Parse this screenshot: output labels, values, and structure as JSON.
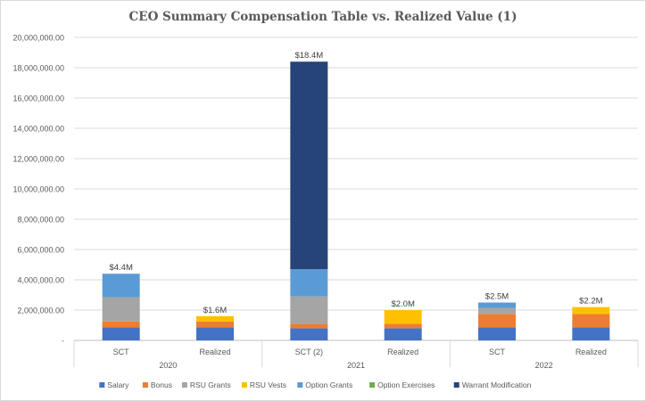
{
  "chart_data": {
    "type": "stacked-bar",
    "title": "CEO Summary Compensation Table vs. Realized Value (1)",
    "ylim": [
      0,
      20000000
    ],
    "yticks": [
      {
        "value": 0,
        "label": "-"
      },
      {
        "value": 2000000,
        "label": "2,000,000.00"
      },
      {
        "value": 4000000,
        "label": "4,000,000.00"
      },
      {
        "value": 6000000,
        "label": "6,000,000.00"
      },
      {
        "value": 8000000,
        "label": "8,000,000.00"
      },
      {
        "value": 10000000,
        "label": "10,000,000.00"
      },
      {
        "value": 12000000,
        "label": "12,000,000.00"
      },
      {
        "value": 14000000,
        "label": "14,000,000.00"
      },
      {
        "value": 16000000,
        "label": "16,000,000.00"
      },
      {
        "value": 18000000,
        "label": "18,000,000.00"
      },
      {
        "value": 20000000,
        "label": "20,000,000.00"
      }
    ],
    "groups": [
      {
        "year": "2020",
        "categories": [
          "SCT",
          "Realized"
        ]
      },
      {
        "year": "2021",
        "categories": [
          "SCT (2)",
          "Realized"
        ]
      },
      {
        "year": "2022",
        "categories": [
          "SCT",
          "Realized"
        ]
      }
    ],
    "series": [
      {
        "name": "Salary",
        "color": "#4472c4",
        "values": [
          850000,
          850000,
          800000,
          800000,
          850000,
          850000
        ]
      },
      {
        "name": "Bonus",
        "color": "#ed7d31",
        "values": [
          400000,
          400000,
          300000,
          300000,
          900000,
          900000
        ]
      },
      {
        "name": "RSU Grants",
        "color": "#a5a5a5",
        "values": [
          1600000,
          0,
          1800000,
          0,
          400000,
          0
        ]
      },
      {
        "name": "RSU Vests",
        "color": "#ffc000",
        "values": [
          0,
          350000,
          0,
          900000,
          0,
          450000
        ]
      },
      {
        "name": "Option Grants",
        "color": "#5b9bd5",
        "values": [
          1550000,
          0,
          1800000,
          0,
          350000,
          0
        ]
      },
      {
        "name": "Option Exercises",
        "color": "#70ad47",
        "values": [
          0,
          0,
          0,
          0,
          0,
          0
        ]
      },
      {
        "name": "Warrant Modification",
        "color": "#264478",
        "values": [
          0,
          0,
          13700000,
          0,
          0,
          0
        ]
      }
    ],
    "totals_labels": [
      "$4.4M",
      "$1.6M",
      "$18.4M",
      "$2.0M",
      "$2.5M",
      "$2.2M"
    ]
  }
}
